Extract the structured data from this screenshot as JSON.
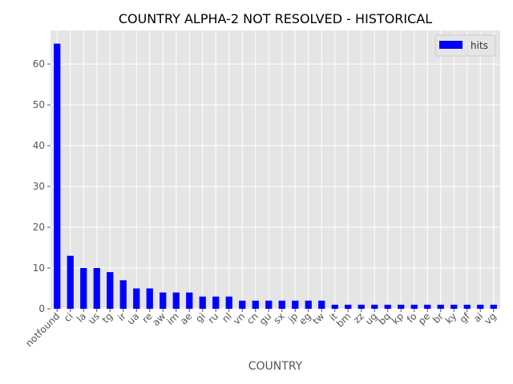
{
  "chart_data": {
    "type": "bar",
    "title": "COUNTRY ALPHA-2 NOT RESOLVED - HISTORICAL",
    "xlabel": "COUNTRY",
    "ylabel": "",
    "categories": [
      "notfound",
      "ci",
      "la",
      "us",
      "tg",
      "ir",
      "ua",
      "re",
      "aw",
      "im",
      "ae",
      "gi",
      "ru",
      "nl",
      "vn",
      "cn",
      "gu",
      "sx",
      "jp",
      "eg",
      "tw",
      "it",
      "bm",
      "zz",
      "ug",
      "bq",
      "kp",
      "fo",
      "pe",
      "br",
      "ky",
      "gf",
      "ai",
      "vg"
    ],
    "series": [
      {
        "name": "hits",
        "color": "#0000ff",
        "values": [
          65,
          13,
          10,
          10,
          9,
          7,
          5,
          5,
          4,
          4,
          4,
          3,
          3,
          3,
          2,
          2,
          2,
          2,
          2,
          2,
          2,
          1,
          1,
          1,
          1,
          1,
          1,
          1,
          1,
          1,
          1,
          1,
          1,
          1
        ]
      }
    ],
    "ylim": [
      0,
      68.25
    ],
    "yticks": [
      0,
      10,
      20,
      30,
      40,
      50,
      60
    ],
    "grid": true,
    "legend_position": "top-right",
    "background": "#e5e5e5",
    "grid_color": "#ffffff"
  }
}
